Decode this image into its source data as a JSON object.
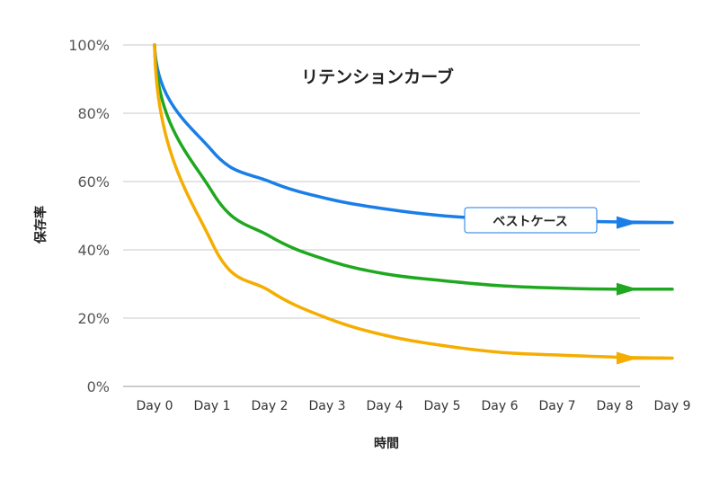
{
  "chart_data": {
    "type": "line",
    "title": "リテンションカーブ",
    "xlabel": "時間",
    "ylabel": "保存率",
    "categories": [
      "Day 0",
      "Day 1",
      "Day 2",
      "Day 3",
      "Day 4",
      "Day 5",
      "Day 6",
      "Day 7",
      "Day 8",
      "Day 9"
    ],
    "y_ticks": [
      "0%",
      "20%",
      "40%",
      "60%",
      "80%",
      "100%"
    ],
    "ylim": [
      0,
      100
    ],
    "grid": true,
    "series": [
      {
        "color": "#1a7ee8",
        "values": [
          100,
          69,
          60,
          55,
          52,
          50,
          49,
          48.5,
          48.2,
          48
        ]
      },
      {
        "color": "#1fa81f",
        "values": [
          100,
          57,
          44,
          37,
          33,
          31,
          29.5,
          28.8,
          28.5,
          28.5
        ]
      },
      {
        "color": "#f5ad00",
        "values": [
          100,
          42,
          28,
          20,
          15,
          12,
          10,
          9.2,
          8.6,
          8.3
        ]
      }
    ],
    "annotation": {
      "text": "ベストケース",
      "series_index": 0
    }
  }
}
